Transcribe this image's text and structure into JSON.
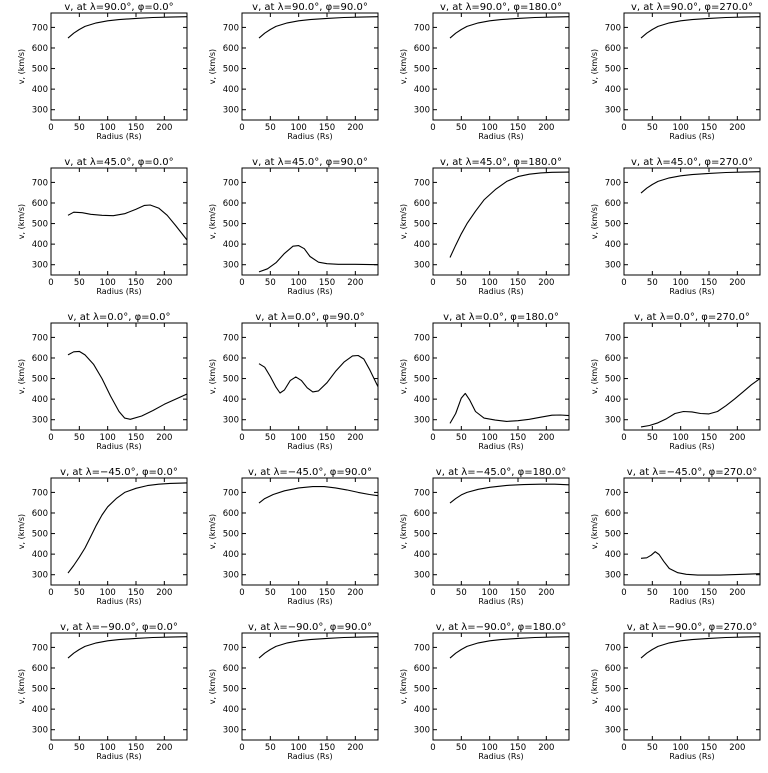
{
  "chart_data": [
    {
      "type": "line",
      "title": "v, at λ=90.0°, φ=0.0°",
      "xlabel": "Radius (Rs)",
      "ylabel": "v, (km/s)",
      "xlim": [
        0,
        240
      ],
      "ylim": [
        250,
        770
      ],
      "xticks": [
        0,
        50,
        100,
        150,
        200
      ],
      "yticks": [
        300,
        400,
        500,
        600,
        700
      ],
      "series": [
        {
          "x": [
            30,
            40,
            50,
            60,
            80,
            100,
            120,
            150,
            180,
            210,
            240
          ],
          "y": [
            648,
            672,
            690,
            705,
            722,
            732,
            738,
            744,
            748,
            750,
            752
          ]
        }
      ]
    },
    {
      "type": "line",
      "title": "v, at λ=90.0°, φ=90.0°",
      "xlabel": "Radius (Rs)",
      "ylabel": "v, (km/s)",
      "xlim": [
        0,
        240
      ],
      "ylim": [
        250,
        770
      ],
      "xticks": [
        0,
        50,
        100,
        150,
        200
      ],
      "yticks": [
        300,
        400,
        500,
        600,
        700
      ],
      "series": [
        {
          "x": [
            30,
            40,
            50,
            60,
            80,
            100,
            120,
            150,
            180,
            210,
            240
          ],
          "y": [
            648,
            672,
            690,
            705,
            722,
            732,
            738,
            744,
            748,
            750,
            752
          ]
        }
      ]
    },
    {
      "type": "line",
      "title": "v, at λ=90.0°, φ=180.0°",
      "xlabel": "Radius (Rs)",
      "ylabel": "v, (km/s)",
      "xlim": [
        0,
        240
      ],
      "ylim": [
        250,
        770
      ],
      "xticks": [
        0,
        50,
        100,
        150,
        200
      ],
      "yticks": [
        300,
        400,
        500,
        600,
        700
      ],
      "series": [
        {
          "x": [
            30,
            40,
            50,
            60,
            80,
            100,
            120,
            150,
            180,
            210,
            240
          ],
          "y": [
            648,
            672,
            690,
            705,
            722,
            732,
            738,
            744,
            748,
            750,
            752
          ]
        }
      ]
    },
    {
      "type": "line",
      "title": "v, at λ=90.0°, φ=270.0°",
      "xlabel": "Radius (Rs)",
      "ylabel": "v, (km/s)",
      "xlim": [
        0,
        240
      ],
      "ylim": [
        250,
        770
      ],
      "xticks": [
        0,
        50,
        100,
        150,
        200
      ],
      "yticks": [
        300,
        400,
        500,
        600,
        700
      ],
      "series": [
        {
          "x": [
            30,
            40,
            50,
            60,
            80,
            100,
            120,
            150,
            180,
            210,
            240
          ],
          "y": [
            648,
            672,
            690,
            705,
            722,
            732,
            738,
            744,
            748,
            750,
            752
          ]
        }
      ]
    },
    {
      "type": "line",
      "title": "v, at λ=45.0°, φ=0.0°",
      "xlabel": "Radius (Rs)",
      "ylabel": "v, (km/s)",
      "xlim": [
        0,
        240
      ],
      "ylim": [
        250,
        770
      ],
      "xticks": [
        0,
        50,
        100,
        150,
        200
      ],
      "yticks": [
        300,
        400,
        500,
        600,
        700
      ],
      "series": [
        {
          "x": [
            30,
            40,
            55,
            70,
            90,
            110,
            130,
            150,
            165,
            175,
            190,
            205,
            220,
            240
          ],
          "y": [
            540,
            555,
            553,
            545,
            540,
            538,
            548,
            570,
            588,
            590,
            575,
            540,
            490,
            420
          ]
        }
      ]
    },
    {
      "type": "line",
      "title": "v, at λ=45.0°, φ=90.0°",
      "xlabel": "Radius (Rs)",
      "ylabel": "v, (km/s)",
      "xlim": [
        0,
        240
      ],
      "ylim": [
        250,
        770
      ],
      "xticks": [
        0,
        50,
        100,
        150,
        200
      ],
      "yticks": [
        300,
        400,
        500,
        600,
        700
      ],
      "series": [
        {
          "x": [
            30,
            45,
            60,
            75,
            90,
            100,
            110,
            120,
            135,
            150,
            170,
            200,
            240
          ],
          "y": [
            265,
            280,
            310,
            355,
            390,
            393,
            378,
            340,
            312,
            305,
            302,
            302,
            300
          ]
        }
      ]
    },
    {
      "type": "line",
      "title": "v, at λ=45.0°, φ=180.0°",
      "xlabel": "Radius (Rs)",
      "ylabel": "v, (km/s)",
      "xlim": [
        0,
        240
      ],
      "ylim": [
        250,
        770
      ],
      "xticks": [
        0,
        50,
        100,
        150,
        200
      ],
      "yticks": [
        300,
        400,
        500,
        600,
        700
      ],
      "series": [
        {
          "x": [
            30,
            40,
            50,
            60,
            75,
            90,
            110,
            130,
            150,
            170,
            190,
            210,
            240
          ],
          "y": [
            335,
            395,
            450,
            500,
            560,
            615,
            665,
            705,
            728,
            740,
            746,
            749,
            750
          ]
        }
      ]
    },
    {
      "type": "line",
      "title": "v, at λ=45.0°, φ=270.0°",
      "xlabel": "Radius (Rs)",
      "ylabel": "v, (km/s)",
      "xlim": [
        0,
        240
      ],
      "ylim": [
        250,
        770
      ],
      "xticks": [
        0,
        50,
        100,
        150,
        200
      ],
      "yticks": [
        300,
        400,
        500,
        600,
        700
      ],
      "series": [
        {
          "x": [
            30,
            40,
            50,
            60,
            80,
            100,
            120,
            150,
            180,
            210,
            240
          ],
          "y": [
            648,
            672,
            690,
            705,
            722,
            732,
            738,
            744,
            748,
            750,
            752
          ]
        }
      ]
    },
    {
      "type": "line",
      "title": "v, at λ=0.0°, φ=0.0°",
      "xlabel": "Radius (Rs)",
      "ylabel": "v, (km/s)",
      "xlim": [
        0,
        240
      ],
      "ylim": [
        250,
        770
      ],
      "xticks": [
        0,
        50,
        100,
        150,
        200
      ],
      "yticks": [
        300,
        400,
        500,
        600,
        700
      ],
      "series": [
        {
          "x": [
            30,
            40,
            50,
            60,
            75,
            90,
            105,
            120,
            130,
            140,
            160,
            180,
            200,
            220,
            240
          ],
          "y": [
            615,
            630,
            632,
            615,
            570,
            500,
            415,
            340,
            308,
            302,
            318,
            345,
            375,
            400,
            425
          ]
        }
      ]
    },
    {
      "type": "line",
      "title": "v, at λ=0.0°, φ=90.0°",
      "xlabel": "Radius (Rs)",
      "ylabel": "v, (km/s)",
      "xlim": [
        0,
        240
      ],
      "ylim": [
        250,
        770
      ],
      "xticks": [
        0,
        50,
        100,
        150,
        200
      ],
      "yticks": [
        300,
        400,
        500,
        600,
        700
      ],
      "series": [
        {
          "x": [
            30,
            40,
            50,
            60,
            67,
            75,
            85,
            95,
            105,
            115,
            125,
            135,
            150,
            165,
            180,
            195,
            205,
            215,
            225,
            240
          ],
          "y": [
            572,
            555,
            510,
            458,
            430,
            445,
            490,
            508,
            490,
            455,
            435,
            440,
            480,
            535,
            580,
            610,
            612,
            595,
            545,
            460
          ]
        }
      ]
    },
    {
      "type": "line",
      "title": "v, at λ=0.0°, φ=180.0°",
      "xlabel": "Radius (Rs)",
      "ylabel": "v, (km/s)",
      "xlim": [
        0,
        240
      ],
      "ylim": [
        250,
        770
      ],
      "xticks": [
        0,
        50,
        100,
        150,
        200
      ],
      "yticks": [
        300,
        400,
        500,
        600,
        700
      ],
      "series": [
        {
          "x": [
            30,
            40,
            50,
            57,
            65,
            75,
            90,
            110,
            130,
            150,
            170,
            190,
            210,
            225,
            240
          ],
          "y": [
            282,
            330,
            405,
            428,
            395,
            340,
            308,
            298,
            292,
            295,
            302,
            312,
            322,
            323,
            320
          ]
        }
      ]
    },
    {
      "type": "line",
      "title": "v, at λ=0.0°, φ=270.0°",
      "xlabel": "Radius (Rs)",
      "ylabel": "v, (km/s)",
      "xlim": [
        0,
        240
      ],
      "ylim": [
        250,
        770
      ],
      "xticks": [
        0,
        50,
        100,
        150,
        200
      ],
      "yticks": [
        300,
        400,
        500,
        600,
        700
      ],
      "series": [
        {
          "x": [
            30,
            45,
            60,
            75,
            90,
            105,
            120,
            135,
            150,
            165,
            180,
            195,
            210,
            225,
            240
          ],
          "y": [
            265,
            272,
            285,
            305,
            330,
            340,
            338,
            330,
            328,
            340,
            368,
            400,
            435,
            470,
            500
          ]
        }
      ]
    },
    {
      "type": "line",
      "title": "v, at λ=−45.0°, φ=0.0°",
      "xlabel": "Radius (Rs)",
      "ylabel": "v, (km/s)",
      "xlim": [
        0,
        240
      ],
      "ylim": [
        250,
        770
      ],
      "xticks": [
        0,
        50,
        100,
        150,
        200
      ],
      "yticks": [
        300,
        400,
        500,
        600,
        700
      ],
      "series": [
        {
          "x": [
            30,
            40,
            50,
            60,
            70,
            80,
            90,
            100,
            115,
            130,
            150,
            170,
            190,
            210,
            240
          ],
          "y": [
            308,
            345,
            385,
            430,
            485,
            540,
            590,
            630,
            670,
            700,
            720,
            733,
            740,
            744,
            746
          ]
        }
      ]
    },
    {
      "type": "line",
      "title": "v, at λ=−45.0°, φ=90.0°",
      "xlabel": "Radius (Rs)",
      "ylabel": "v, (km/s)",
      "xlim": [
        0,
        240
      ],
      "ylim": [
        250,
        770
      ],
      "xticks": [
        0,
        50,
        100,
        150,
        200
      ],
      "yticks": [
        300,
        400,
        500,
        600,
        700
      ],
      "series": [
        {
          "x": [
            30,
            40,
            55,
            75,
            100,
            125,
            145,
            165,
            185,
            205,
            225,
            240
          ],
          "y": [
            648,
            670,
            690,
            708,
            722,
            728,
            728,
            722,
            712,
            700,
            690,
            684
          ]
        }
      ]
    },
    {
      "type": "line",
      "title": "v, at λ=−45.0°, φ=180.0°",
      "xlabel": "Radius (Rs)",
      "ylabel": "v, (km/s)",
      "xlim": [
        0,
        240
      ],
      "ylim": [
        250,
        770
      ],
      "xticks": [
        0,
        50,
        100,
        150,
        200
      ],
      "yticks": [
        300,
        400,
        500,
        600,
        700
      ],
      "series": [
        {
          "x": [
            30,
            40,
            50,
            60,
            80,
            100,
            130,
            160,
            190,
            215,
            240
          ],
          "y": [
            648,
            670,
            688,
            700,
            715,
            725,
            734,
            738,
            740,
            740,
            737
          ]
        }
      ]
    },
    {
      "type": "line",
      "title": "v, at λ=−45.0°, φ=270.0°",
      "xlabel": "Radius (Rs)",
      "ylabel": "v, (km/s)",
      "xlim": [
        0,
        240
      ],
      "ylim": [
        250,
        770
      ],
      "xticks": [
        0,
        50,
        100,
        150,
        200
      ],
      "yticks": [
        300,
        400,
        500,
        600,
        700
      ],
      "series": [
        {
          "x": [
            30,
            40,
            48,
            55,
            62,
            70,
            80,
            95,
            110,
            130,
            150,
            170,
            190,
            210,
            240
          ],
          "y": [
            380,
            382,
            395,
            412,
            398,
            365,
            330,
            310,
            302,
            298,
            298,
            298,
            300,
            302,
            305
          ]
        }
      ]
    },
    {
      "type": "line",
      "title": "v, at λ=−90.0°, φ=0.0°",
      "xlabel": "Radius (Rs)",
      "ylabel": "v, (km/s)",
      "xlim": [
        0,
        240
      ],
      "ylim": [
        250,
        770
      ],
      "xticks": [
        0,
        50,
        100,
        150,
        200
      ],
      "yticks": [
        300,
        400,
        500,
        600,
        700
      ],
      "series": [
        {
          "x": [
            30,
            40,
            50,
            60,
            80,
            100,
            120,
            150,
            180,
            210,
            240
          ],
          "y": [
            648,
            672,
            690,
            705,
            722,
            732,
            738,
            744,
            748,
            750,
            752
          ]
        }
      ]
    },
    {
      "type": "line",
      "title": "v, at λ=−90.0°, φ=90.0°",
      "xlabel": "Radius (Rs)",
      "ylabel": "v, (km/s)",
      "xlim": [
        0,
        240
      ],
      "ylim": [
        250,
        770
      ],
      "xticks": [
        0,
        50,
        100,
        150,
        200
      ],
      "yticks": [
        300,
        400,
        500,
        600,
        700
      ],
      "series": [
        {
          "x": [
            30,
            40,
            50,
            60,
            80,
            100,
            120,
            150,
            180,
            210,
            240
          ],
          "y": [
            648,
            672,
            690,
            705,
            722,
            732,
            738,
            744,
            748,
            750,
            752
          ]
        }
      ]
    },
    {
      "type": "line",
      "title": "v, at λ=−90.0°, φ=180.0°",
      "xlabel": "Radius (Rs)",
      "ylabel": "v, (km/s)",
      "xlim": [
        0,
        240
      ],
      "ylim": [
        250,
        770
      ],
      "xticks": [
        0,
        50,
        100,
        150,
        200
      ],
      "yticks": [
        300,
        400,
        500,
        600,
        700
      ],
      "series": [
        {
          "x": [
            30,
            40,
            50,
            60,
            80,
            100,
            120,
            150,
            180,
            210,
            240
          ],
          "y": [
            648,
            672,
            690,
            705,
            722,
            732,
            738,
            744,
            748,
            750,
            752
          ]
        }
      ]
    },
    {
      "type": "line",
      "title": "v, at λ=−90.0°, φ=270.0°",
      "xlabel": "Radius (Rs)",
      "ylabel": "v, (km/s)",
      "xlim": [
        0,
        240
      ],
      "ylim": [
        250,
        770
      ],
      "xticks": [
        0,
        50,
        100,
        150,
        200
      ],
      "yticks": [
        300,
        400,
        500,
        600,
        700
      ],
      "series": [
        {
          "x": [
            30,
            40,
            50,
            60,
            80,
            100,
            120,
            150,
            180,
            210,
            240
          ],
          "y": [
            648,
            672,
            690,
            705,
            722,
            732,
            738,
            744,
            748,
            750,
            752
          ]
        }
      ]
    }
  ]
}
